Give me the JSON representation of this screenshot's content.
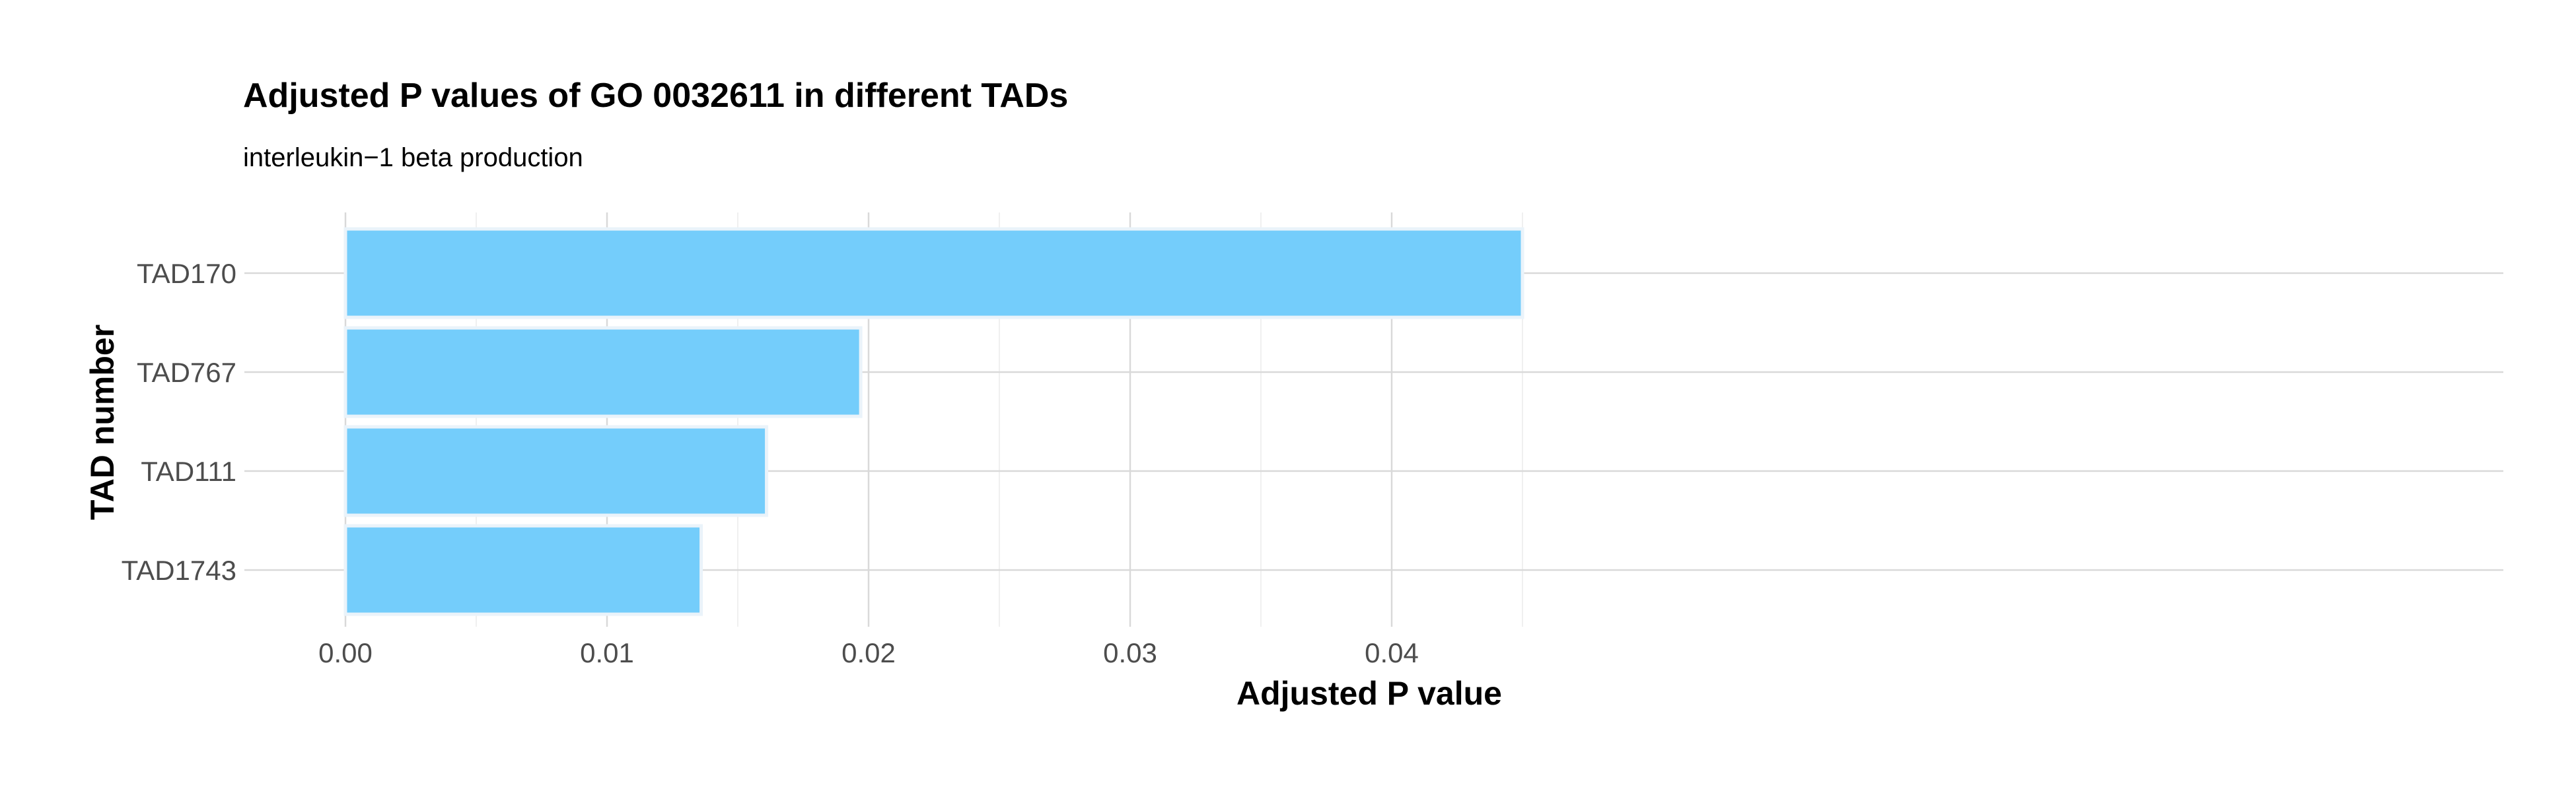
{
  "chart_data": {
    "type": "bar",
    "orientation": "horizontal",
    "title": "Adjusted P values of GO 0032611 in different TADs",
    "subtitle": "interleukin−1 beta production",
    "xlabel": "Adjusted P value",
    "ylabel": "TAD number",
    "categories": [
      "TAD170",
      "TAD767",
      "TAD111",
      "TAD1743"
    ],
    "values": [
      0.045,
      0.0197,
      0.0161,
      0.0136
    ],
    "xlim": [
      0,
      0.0473
    ],
    "xticks": [
      0.0,
      0.01,
      0.02,
      0.03,
      0.04
    ],
    "xtick_labels": [
      "0.00",
      "0.01",
      "0.02",
      "0.03",
      "0.04"
    ],
    "grid": true,
    "bar_color": "#74CDFB",
    "bar_outline_color": "#EAF3FA"
  }
}
